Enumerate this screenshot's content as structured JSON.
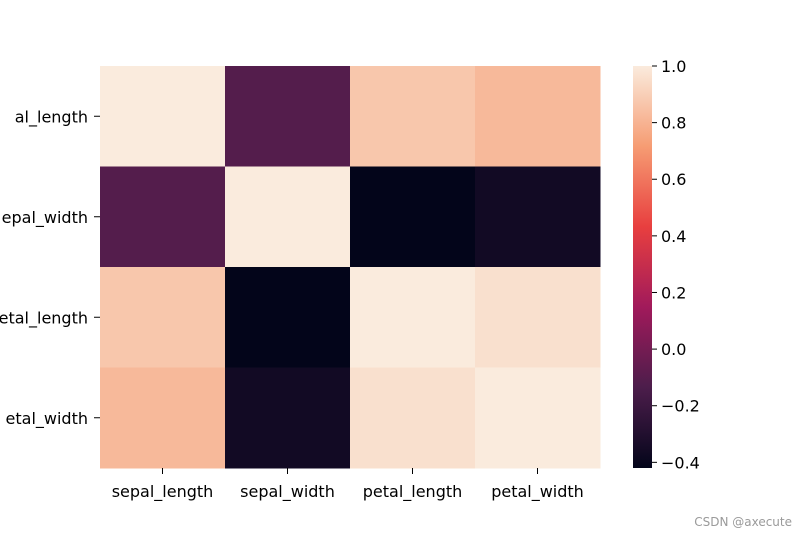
{
  "chart_data": {
    "type": "heatmap",
    "title": "",
    "xlabel": "",
    "ylabel": "",
    "x_categories": [
      "sepal_length",
      "sepal_width",
      "petal_length",
      "petal_width"
    ],
    "y_categories": [
      "sepal_length",
      "sepal_width",
      "petal_length",
      "petal_width"
    ],
    "matrix": [
      [
        1.0,
        -0.11,
        0.87,
        0.82
      ],
      [
        -0.11,
        1.0,
        -0.42,
        -0.36
      ],
      [
        0.87,
        -0.42,
        1.0,
        0.96
      ],
      [
        0.82,
        -0.36,
        0.96,
        1.0
      ]
    ],
    "colorbar": {
      "range": [
        -0.42,
        1.0
      ],
      "ticks": [
        1.0,
        0.8,
        0.6,
        0.4,
        0.2,
        0.0,
        -0.2,
        -0.4
      ],
      "tick_labels": [
        "1.0",
        "0.8",
        "0.6",
        "0.4",
        "0.2",
        "0.0",
        "−0.2",
        "−0.4"
      ],
      "colormap": "rocket",
      "colormap_stops": [
        "#03051a",
        "#4c1d4b",
        "#a11a5b",
        "#e83f3f",
        "#f69c73",
        "#faebdd"
      ]
    },
    "visible_y_tick_labels": [
      "al_length",
      "epal_width",
      "etal_length",
      "etal_width"
    ],
    "grid": false
  },
  "watermark": "CSDN @axecute"
}
